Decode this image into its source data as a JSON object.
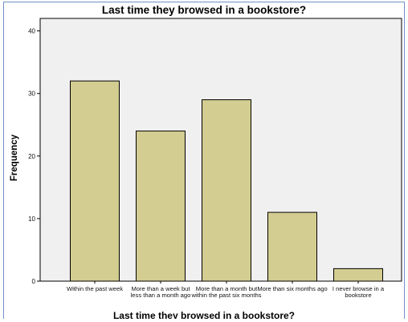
{
  "chart_data": {
    "type": "bar",
    "title": "Last time they browsed in a bookstore?",
    "xlabel": "Last time they browsed in a bookstore?",
    "ylabel": "Frequency",
    "categories": [
      "Within the past week",
      "More than a week but less than a month ago",
      "More than a month but within the past six months",
      "More than six months ago",
      "I never browse in a bookstore"
    ],
    "values": [
      32,
      24,
      29,
      11,
      2
    ],
    "ylim": [
      0,
      42
    ],
    "yticks": [
      0,
      10,
      20,
      30,
      40
    ],
    "grid": false,
    "colors": {
      "bar_fill": "#d3cd91",
      "bar_stroke": "#000000",
      "plot_background": "#f0f0f0",
      "window_border": "#6f8fc7"
    }
  }
}
